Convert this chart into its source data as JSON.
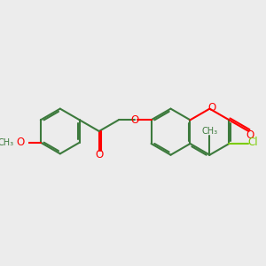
{
  "bg_color": "#ececec",
  "bond_color": "#3d7a3d",
  "O_color": "#ff0000",
  "Cl_color": "#7acc00",
  "lw": 1.5,
  "fs": 8.5,
  "figsize": [
    3.0,
    3.0
  ],
  "dpi": 100,
  "xlim": [
    0,
    10
  ],
  "ylim": [
    0,
    10
  ]
}
